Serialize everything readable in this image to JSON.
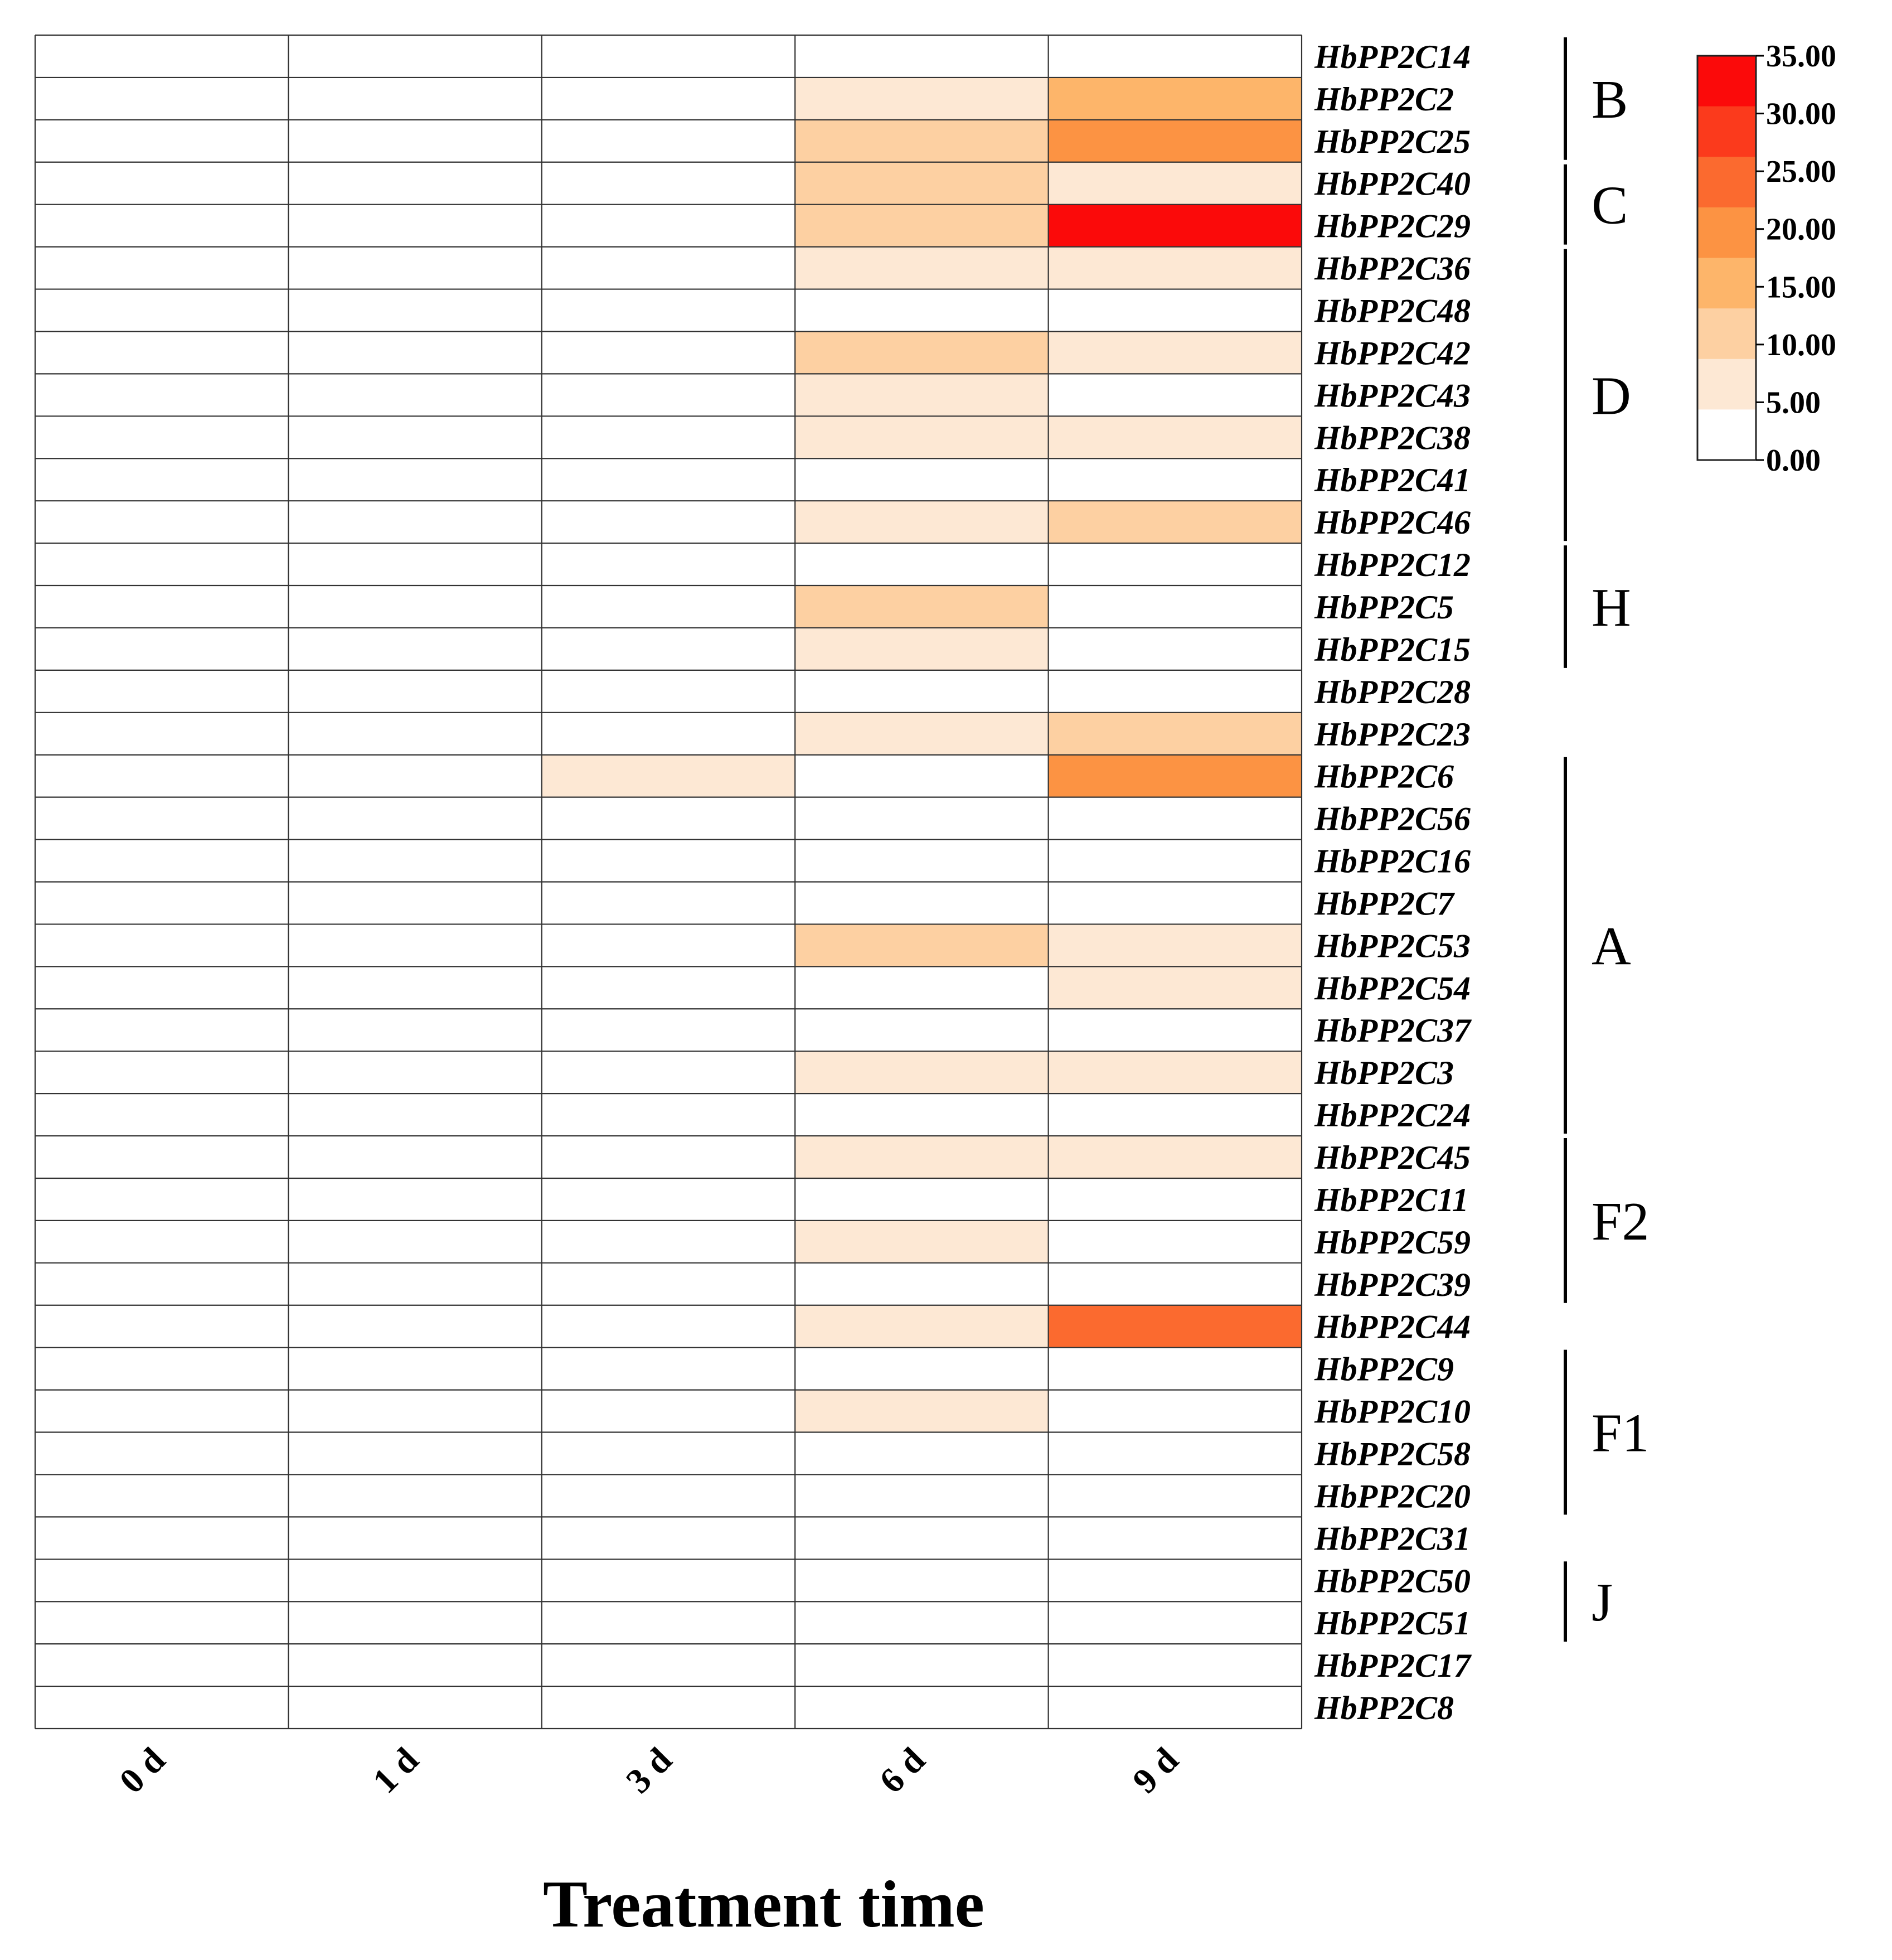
{
  "chart_data": {
    "type": "heatmap",
    "title": "",
    "xlabel": "Treatment time",
    "columns": [
      "0 d",
      "1 d",
      "3 d",
      "6 d",
      "9 d"
    ],
    "rows": [
      {
        "gene": "HbPP2C14",
        "values": [
          0,
          0,
          0,
          0,
          0
        ]
      },
      {
        "gene": "HbPP2C2",
        "values": [
          0,
          0,
          0,
          3,
          13
        ]
      },
      {
        "gene": "HbPP2C25",
        "values": [
          0,
          0,
          0,
          8,
          18
        ]
      },
      {
        "gene": "HbPP2C40",
        "values": [
          0,
          0,
          0,
          8,
          3
        ]
      },
      {
        "gene": "HbPP2C29",
        "values": [
          0,
          0,
          0,
          8,
          33
        ]
      },
      {
        "gene": "HbPP2C36",
        "values": [
          0,
          0,
          0,
          3,
          3
        ]
      },
      {
        "gene": "HbPP2C48",
        "values": [
          0,
          0,
          0,
          0,
          0
        ]
      },
      {
        "gene": "HbPP2C42",
        "values": [
          0,
          0,
          0,
          8,
          3
        ]
      },
      {
        "gene": "HbPP2C43",
        "values": [
          0,
          0,
          0,
          3,
          0
        ]
      },
      {
        "gene": "HbPP2C38",
        "values": [
          0,
          0,
          0,
          3,
          3
        ]
      },
      {
        "gene": "HbPP2C41",
        "values": [
          0,
          0,
          0,
          0,
          0
        ]
      },
      {
        "gene": "HbPP2C46",
        "values": [
          0,
          0,
          0,
          3,
          8
        ]
      },
      {
        "gene": "HbPP2C12",
        "values": [
          0,
          0,
          0,
          0,
          0
        ]
      },
      {
        "gene": "HbPP2C5",
        "values": [
          0,
          0,
          0,
          8,
          0
        ]
      },
      {
        "gene": "HbPP2C15",
        "values": [
          0,
          0,
          0,
          3,
          0
        ]
      },
      {
        "gene": "HbPP2C28",
        "values": [
          0,
          0,
          0,
          0,
          0
        ]
      },
      {
        "gene": "HbPP2C23",
        "values": [
          0,
          0,
          0,
          3,
          8
        ]
      },
      {
        "gene": "HbPP2C6",
        "values": [
          0,
          0,
          3,
          0,
          18
        ]
      },
      {
        "gene": "HbPP2C56",
        "values": [
          0,
          0,
          0,
          0,
          0
        ]
      },
      {
        "gene": "HbPP2C16",
        "values": [
          0,
          0,
          0,
          0,
          0
        ]
      },
      {
        "gene": "HbPP2C7",
        "values": [
          0,
          0,
          0,
          0,
          0
        ]
      },
      {
        "gene": "HbPP2C53",
        "values": [
          0,
          0,
          0,
          8,
          3
        ]
      },
      {
        "gene": "HbPP2C54",
        "values": [
          0,
          0,
          0,
          0,
          3
        ]
      },
      {
        "gene": "HbPP2C37",
        "values": [
          0,
          0,
          0,
          0,
          0
        ]
      },
      {
        "gene": "HbPP2C3",
        "values": [
          0,
          0,
          0,
          3,
          3
        ]
      },
      {
        "gene": "HbPP2C24",
        "values": [
          0,
          0,
          0,
          0,
          0
        ]
      },
      {
        "gene": "HbPP2C45",
        "values": [
          0,
          0,
          0,
          3,
          3
        ]
      },
      {
        "gene": "HbPP2C11",
        "values": [
          0,
          0,
          0,
          0,
          0
        ]
      },
      {
        "gene": "HbPP2C59",
        "values": [
          0,
          0,
          0,
          3,
          0
        ]
      },
      {
        "gene": "HbPP2C39",
        "values": [
          0,
          0,
          0,
          0,
          0
        ]
      },
      {
        "gene": "HbPP2C44",
        "values": [
          0,
          0,
          0,
          3,
          23
        ]
      },
      {
        "gene": "HbPP2C9",
        "values": [
          0,
          0,
          0,
          0,
          0
        ]
      },
      {
        "gene": "HbPP2C10",
        "values": [
          0,
          0,
          0,
          3,
          0
        ]
      },
      {
        "gene": "HbPP2C58",
        "values": [
          0,
          0,
          0,
          0,
          0
        ]
      },
      {
        "gene": "HbPP2C20",
        "values": [
          0,
          0,
          0,
          0,
          0
        ]
      },
      {
        "gene": "HbPP2C31",
        "values": [
          0,
          0,
          0,
          0,
          0
        ]
      },
      {
        "gene": "HbPP2C50",
        "values": [
          0,
          0,
          0,
          0,
          0
        ]
      },
      {
        "gene": "HbPP2C51",
        "values": [
          0,
          0,
          0,
          0,
          0
        ]
      },
      {
        "gene": "HbPP2C17",
        "values": [
          0,
          0,
          0,
          0,
          0
        ]
      },
      {
        "gene": "HbPP2C8",
        "values": [
          0,
          0,
          0,
          0,
          0
        ]
      }
    ],
    "groups": [
      {
        "label": "B",
        "start": 0,
        "end": 2
      },
      {
        "label": "C",
        "start": 3,
        "end": 4
      },
      {
        "label": "D",
        "start": 5,
        "end": 11
      },
      {
        "label": "H",
        "start": 12,
        "end": 14
      },
      {
        "label": "A",
        "start": 17,
        "end": 25
      },
      {
        "label": "F2",
        "start": 26,
        "end": 29
      },
      {
        "label": "F1",
        "start": 31,
        "end": 34
      },
      {
        "label": "J",
        "start": 36,
        "end": 37
      }
    ],
    "legend": {
      "ticks": [
        "35.00",
        "30.00",
        "25.00",
        "20.00",
        "15.00",
        "10.00",
        "5.00",
        "0.00"
      ],
      "min": 0,
      "max": 35,
      "colors": [
        "#ffffff",
        "#fde8d4",
        "#fdd0a2",
        "#fdb56a",
        "#fc9343",
        "#fb6a2f",
        "#fb3a1c",
        "#fb0a0a"
      ]
    }
  }
}
